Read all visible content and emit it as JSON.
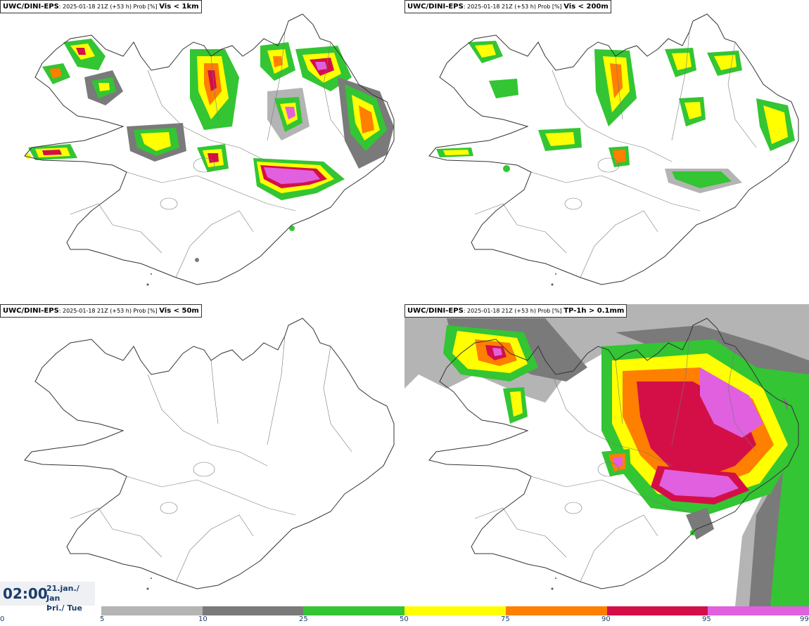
{
  "panels": [
    {
      "model": "UWC/DINI-EPS",
      "run": ": 2025-01-18 21Z (+53 h) Prob [%] ",
      "variable": "Vis < 1km"
    },
    {
      "model": "UWC/DINI-EPS",
      "run": ": 2025-01-18 21Z (+53 h) Prob [%] ",
      "variable": "Vis < 200m"
    },
    {
      "model": "UWC/DINI-EPS",
      "run": ": 2025-01-18 21Z (+53 h) Prob [%] ",
      "variable": "Vis < 50m"
    },
    {
      "model": "UWC/DINI-EPS",
      "run": ": 2025-01-18 21Z (+53 h) Prob [%] ",
      "variable": "TP-1h > 0.1mm"
    }
  ],
  "timestamp": {
    "time": "02:00",
    "date_line1": "21.jan./ Jan",
    "date_line2": "Þri./ Tue"
  },
  "colorbar": {
    "ticks": [
      "0",
      "5",
      "10",
      "25",
      "50",
      "75",
      "90",
      "95",
      "99"
    ],
    "colors": [
      "#b4b4b4",
      "#7a7a7a",
      "#33c533",
      "#ffff00",
      "#ff7f00",
      "#d40f47",
      "#e060e0"
    ]
  }
}
